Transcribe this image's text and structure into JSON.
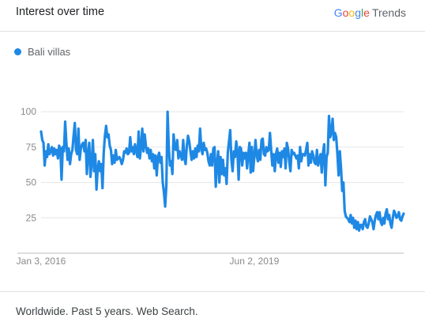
{
  "header": {
    "title": "Interest over time",
    "brand": {
      "g1": "G",
      "g2": "o",
      "g3": "o",
      "g4": "g",
      "g5": "l",
      "g6": "e",
      "trends": "Trends"
    }
  },
  "legend": {
    "label": "Bali villas",
    "color": "#1E88E5"
  },
  "footer": {
    "text": "Worldwide. Past 5 years. Web Search."
  },
  "chart_data": {
    "type": "line",
    "ylim": [
      0,
      100
    ],
    "yticks": [
      25,
      50,
      75,
      100
    ],
    "ytick_labels": [
      "25",
      "50",
      "75",
      "100"
    ],
    "xtick_labels": [
      "Jan 3, 2016",
      "Jun 2, 2019"
    ],
    "xtick_index": [
      0,
      177
    ],
    "grid": true,
    "legend_position": "top-left",
    "series": [
      {
        "name": "Bali villas",
        "color": "#1E88E5",
        "values": [
          86,
          80,
          78,
          62,
          72,
          68,
          77,
          70,
          72,
          75,
          69,
          74,
          70,
          73,
          67,
          76,
          74,
          52,
          75,
          72,
          93,
          78,
          66,
          74,
          63,
          70,
          73,
          83,
          92,
          73,
          70,
          88,
          66,
          74,
          77,
          78,
          72,
          80,
          56,
          70,
          78,
          54,
          64,
          80,
          58,
          70,
          45,
          60,
          65,
          58,
          63,
          46,
          71,
          83,
          90,
          82,
          84,
          76,
          73,
          63,
          69,
          64,
          73,
          66,
          67,
          68,
          66,
          63,
          66,
          72,
          71,
          74,
          70,
          71,
          82,
          72,
          75,
          70,
          77,
          72,
          68,
          86,
          67,
          75,
          88,
          72,
          84,
          76,
          71,
          74,
          67,
          73,
          65,
          70,
          60,
          69,
          55,
          68,
          71,
          64,
          68,
          50,
          43,
          33,
          48,
          100,
          75,
          62,
          65,
          56,
          84,
          74,
          73,
          80,
          67,
          72,
          69,
          66,
          80,
          67,
          63,
          76,
          83,
          79,
          72,
          66,
          72,
          67,
          74,
          68,
          76,
          72,
          88,
          74,
          70,
          78,
          73,
          74,
          71,
          65,
          62,
          70,
          62,
          74,
          75,
          47,
          63,
          72,
          50,
          68,
          56,
          66,
          55,
          60,
          49,
          71,
          79,
          87,
          66,
          58,
          72,
          68,
          79,
          72,
          52,
          75,
          74,
          62,
          71,
          67,
          71,
          60,
          70,
          78,
          57,
          75,
          58,
          68,
          80,
          69,
          65,
          73,
          66,
          80,
          81,
          70,
          69,
          75,
          72,
          73,
          85,
          73,
          62,
          70,
          58,
          70,
          74,
          64,
          71,
          61,
          72,
          68,
          74,
          60,
          78,
          74,
          65,
          58,
          73,
          70,
          71,
          69,
          67,
          69,
          60,
          75,
          65,
          70,
          70,
          69,
          73,
          78,
          62,
          70,
          64,
          72,
          69,
          64,
          63,
          73,
          62,
          66,
          70,
          57,
          71,
          77,
          48,
          68,
          71,
          97,
          82,
          85,
          95,
          80,
          85,
          82,
          70,
          55,
          72,
          60,
          44,
          50,
          30,
          26,
          25,
          24,
          22,
          27,
          21,
          25,
          18,
          23,
          17,
          22,
          16,
          20,
          20,
          17,
          22,
          24,
          19,
          18,
          21,
          26,
          24,
          22,
          17,
          23,
          27,
          29,
          24,
          29,
          22,
          20,
          25,
          21,
          28,
          31,
          24,
          27,
          21,
          18,
          25,
          30,
          28,
          25,
          26,
          29,
          24,
          23,
          26,
          28
        ]
      }
    ]
  }
}
